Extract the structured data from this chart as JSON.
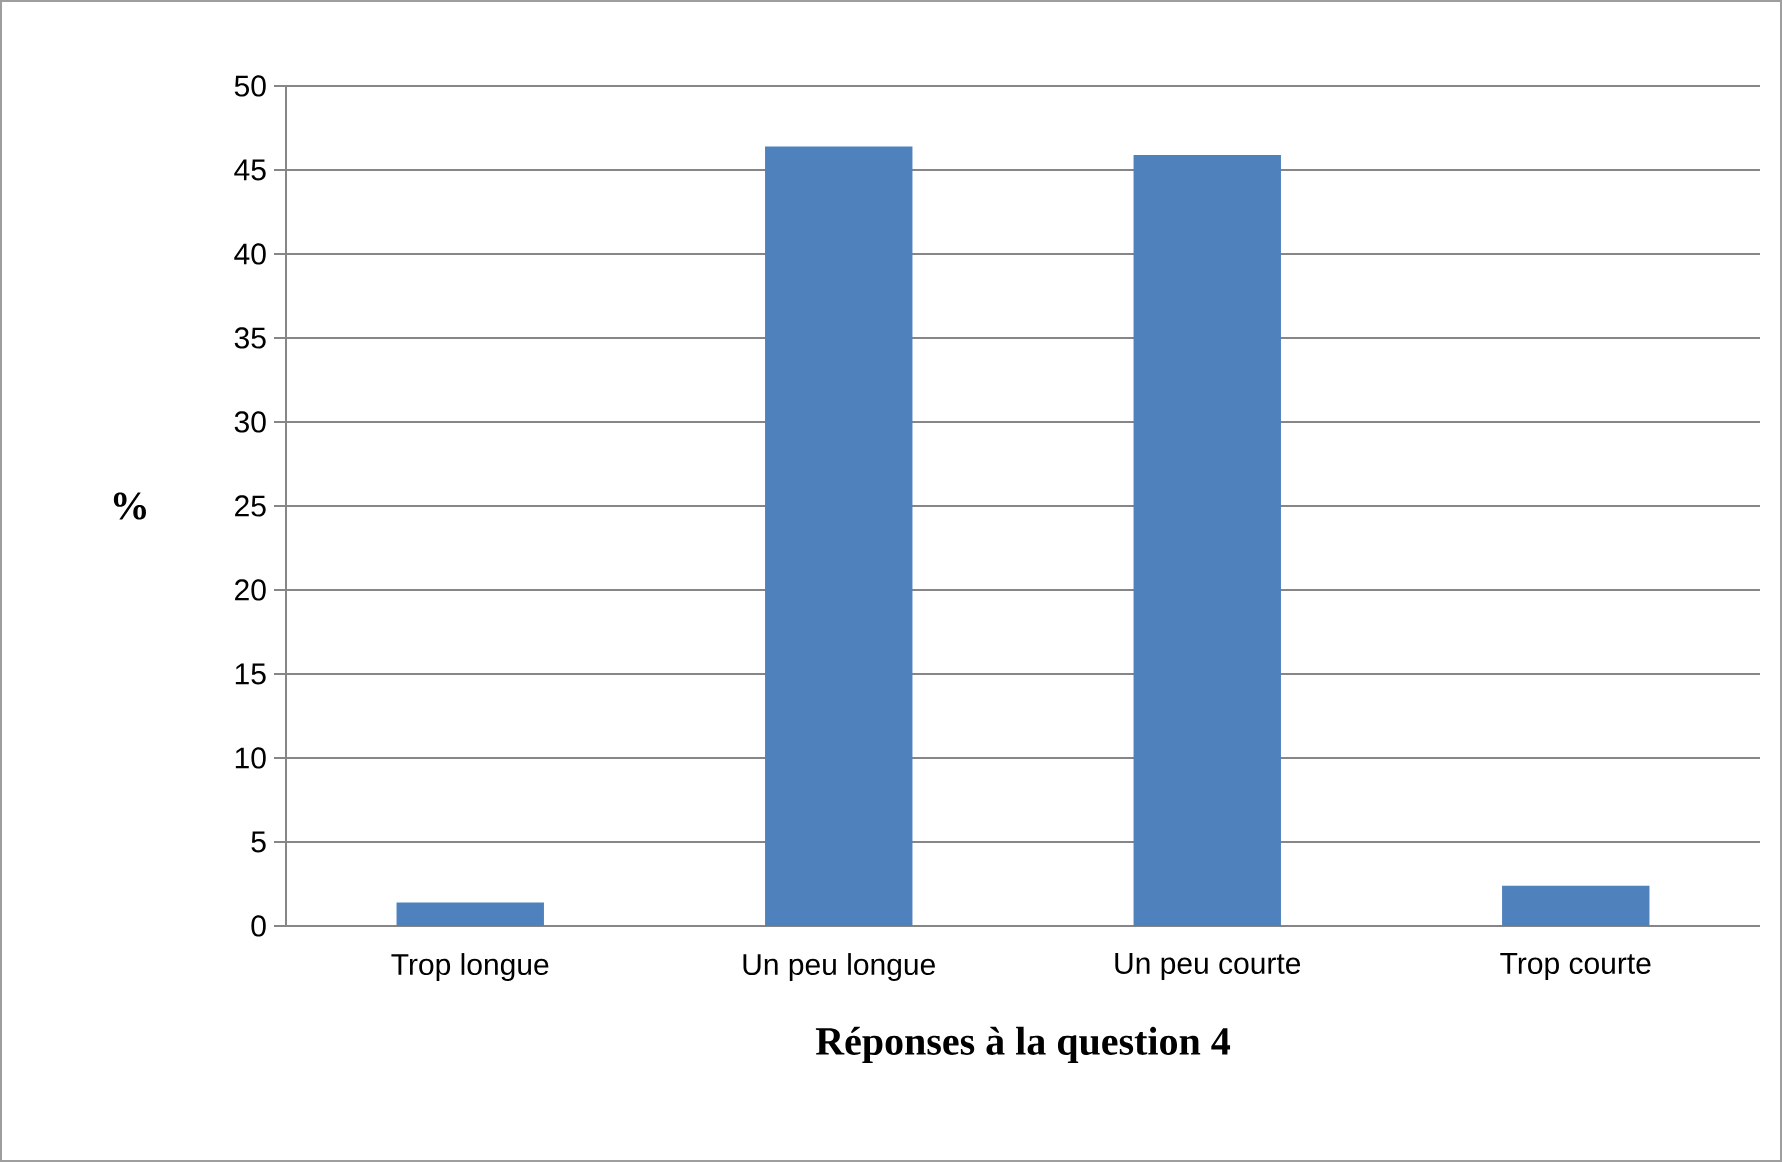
{
  "chart_data": {
    "type": "bar",
    "xlabel": "Réponses à la question 4",
    "ylabel": "%",
    "categories": [
      "Trop longue",
      "Un peu longue",
      "Un peu courte",
      "Trop courte"
    ],
    "values": [
      1.4,
      46.4,
      45.9,
      2.4
    ],
    "color": "#4f81bd",
    "ylim": [
      0,
      50
    ],
    "yticks": [
      0,
      5,
      10,
      15,
      20,
      25,
      30,
      35,
      40,
      45,
      50
    ],
    "grid": "y"
  }
}
